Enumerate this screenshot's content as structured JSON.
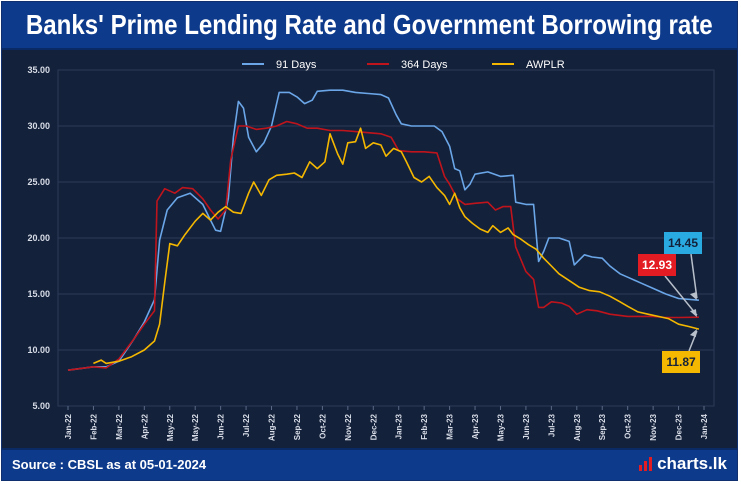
{
  "title": "Banks' Prime Lending Rate and Government Borrowing rate",
  "footer": {
    "source": "Source : CBSL as at 05-01-2024",
    "brand": "charts.lk"
  },
  "colors": {
    "background": "#14213a",
    "header": "#0e3a8c",
    "series_91": "#6aa6e8",
    "series_364": "#c0141c",
    "series_awplr": "#f5b800"
  },
  "chart_data": {
    "type": "line",
    "title": "Banks' Prime Lending Rate and Government Borrowing rate",
    "xlabel": "",
    "ylabel": "",
    "ylim": [
      5,
      35
    ],
    "yticks": [
      "5.00",
      "10.00",
      "15.00",
      "20.00",
      "25.00",
      "30.00",
      "35.00"
    ],
    "xticks": [
      "Jan-22",
      "Feb-22",
      "Mar-22",
      "Apr-22",
      "May-22",
      "May-22",
      "Jun-22",
      "Jul-22",
      "Aug-22",
      "Sep-22",
      "Oct-22",
      "Nov-22",
      "Dec-22",
      "Jan-23",
      "Feb-23",
      "Mar-23",
      "Apr-23",
      "May-23",
      "Jun-23",
      "Jul-23",
      "Aug-23",
      "Sep-23",
      "Oct-23",
      "Nov-23",
      "Dec-23",
      "Jan-24"
    ],
    "grid": true,
    "legend": "top-center",
    "series": [
      {
        "name": "91 Days",
        "color": "#6aa6e8",
        "points": [
          [
            0,
            8.2
          ],
          [
            1.0,
            8.5
          ],
          [
            1.5,
            8.5
          ],
          [
            2.0,
            9.0
          ],
          [
            2.6,
            11.0
          ],
          [
            3.0,
            12.5
          ],
          [
            3.4,
            14.5
          ],
          [
            3.6,
            19.8
          ],
          [
            3.9,
            22.5
          ],
          [
            4.3,
            23.6
          ],
          [
            4.8,
            24.0
          ],
          [
            5.3,
            23.0
          ],
          [
            5.6,
            21.6
          ],
          [
            5.8,
            20.7
          ],
          [
            6.0,
            20.6
          ],
          [
            6.3,
            23.5
          ],
          [
            6.5,
            29.0
          ],
          [
            6.7,
            32.2
          ],
          [
            6.9,
            31.6
          ],
          [
            7.1,
            29.0
          ],
          [
            7.4,
            27.7
          ],
          [
            7.7,
            28.5
          ],
          [
            8.0,
            30.0
          ],
          [
            8.3,
            33.0
          ],
          [
            8.7,
            33.0
          ],
          [
            9.0,
            32.6
          ],
          [
            9.3,
            32.0
          ],
          [
            9.6,
            32.3
          ],
          [
            9.8,
            33.1
          ],
          [
            10.3,
            33.2
          ],
          [
            10.8,
            33.2
          ],
          [
            11.3,
            33.0
          ],
          [
            11.8,
            32.9
          ],
          [
            12.3,
            32.8
          ],
          [
            12.6,
            32.5
          ],
          [
            12.9,
            31.0
          ],
          [
            13.1,
            30.2
          ],
          [
            13.5,
            30.0
          ],
          [
            14.0,
            30.0
          ],
          [
            14.4,
            30.0
          ],
          [
            14.7,
            29.5
          ],
          [
            15.0,
            28.2
          ],
          [
            15.2,
            26.2
          ],
          [
            15.4,
            26.0
          ],
          [
            15.6,
            24.3
          ],
          [
            15.8,
            24.8
          ],
          [
            16.0,
            25.7
          ],
          [
            16.5,
            25.9
          ],
          [
            17.0,
            25.5
          ],
          [
            17.5,
            25.6
          ],
          [
            17.6,
            23.2
          ],
          [
            18.0,
            23.0
          ],
          [
            18.3,
            23.0
          ],
          [
            18.5,
            17.9
          ],
          [
            18.7,
            18.8
          ],
          [
            18.9,
            20.0
          ],
          [
            19.3,
            20.0
          ],
          [
            19.7,
            19.7
          ],
          [
            19.9,
            17.6
          ],
          [
            20.3,
            18.5
          ],
          [
            20.6,
            18.3
          ],
          [
            21.0,
            18.2
          ],
          [
            21.3,
            17.5
          ],
          [
            21.7,
            16.8
          ],
          [
            22.0,
            16.5
          ],
          [
            22.5,
            16.0
          ],
          [
            23.0,
            15.5
          ],
          [
            23.5,
            15.0
          ],
          [
            24.0,
            14.6
          ],
          [
            24.8,
            14.45
          ]
        ]
      },
      {
        "name": "364 Days",
        "color": "#c0141c",
        "points": [
          [
            0,
            8.2
          ],
          [
            1.0,
            8.5
          ],
          [
            1.5,
            8.4
          ],
          [
            2.0,
            9.2
          ],
          [
            2.6,
            11.0
          ],
          [
            3.0,
            12.3
          ],
          [
            3.4,
            13.5
          ],
          [
            3.5,
            23.3
          ],
          [
            3.8,
            24.4
          ],
          [
            4.2,
            24.0
          ],
          [
            4.5,
            24.5
          ],
          [
            4.9,
            24.4
          ],
          [
            5.3,
            23.5
          ],
          [
            5.6,
            22.5
          ],
          [
            5.9,
            21.7
          ],
          [
            6.2,
            22.5
          ],
          [
            6.4,
            27.0
          ],
          [
            6.7,
            30.0
          ],
          [
            7.0,
            30.0
          ],
          [
            7.4,
            29.7
          ],
          [
            7.8,
            29.8
          ],
          [
            8.2,
            30.0
          ],
          [
            8.6,
            30.4
          ],
          [
            9.0,
            30.2
          ],
          [
            9.4,
            29.8
          ],
          [
            9.8,
            29.8
          ],
          [
            10.3,
            29.6
          ],
          [
            10.8,
            29.6
          ],
          [
            11.3,
            29.5
          ],
          [
            11.8,
            29.4
          ],
          [
            12.3,
            29.3
          ],
          [
            12.7,
            29.0
          ],
          [
            13.0,
            27.8
          ],
          [
            13.5,
            27.7
          ],
          [
            14.0,
            27.7
          ],
          [
            14.5,
            27.6
          ],
          [
            14.8,
            25.5
          ],
          [
            15.0,
            24.8
          ],
          [
            15.3,
            23.5
          ],
          [
            15.6,
            23.0
          ],
          [
            16.0,
            23.1
          ],
          [
            16.5,
            23.2
          ],
          [
            16.8,
            22.5
          ],
          [
            17.1,
            22.8
          ],
          [
            17.4,
            22.8
          ],
          [
            17.6,
            19.2
          ],
          [
            18.0,
            17.0
          ],
          [
            18.3,
            16.3
          ],
          [
            18.5,
            13.8
          ],
          [
            18.7,
            13.8
          ],
          [
            19.0,
            14.3
          ],
          [
            19.4,
            14.2
          ],
          [
            19.7,
            13.9
          ],
          [
            20.0,
            13.2
          ],
          [
            20.4,
            13.6
          ],
          [
            20.8,
            13.5
          ],
          [
            21.3,
            13.2
          ],
          [
            22.0,
            13.0
          ],
          [
            22.5,
            13.0
          ],
          [
            23.0,
            13.0
          ],
          [
            23.5,
            12.9
          ],
          [
            24.0,
            12.9
          ],
          [
            24.8,
            12.93
          ]
        ]
      },
      {
        "name": "AWPLR",
        "color": "#f5b800",
        "points": [
          [
            1.0,
            8.8
          ],
          [
            1.3,
            9.1
          ],
          [
            1.5,
            8.8
          ],
          [
            2.0,
            9.0
          ],
          [
            2.5,
            9.4
          ],
          [
            3.0,
            10.0
          ],
          [
            3.4,
            10.8
          ],
          [
            3.6,
            12.3
          ],
          [
            3.8,
            16.0
          ],
          [
            4.0,
            19.5
          ],
          [
            4.3,
            19.3
          ],
          [
            4.6,
            20.3
          ],
          [
            5.0,
            21.5
          ],
          [
            5.3,
            22.2
          ],
          [
            5.6,
            21.6
          ],
          [
            5.9,
            22.3
          ],
          [
            6.2,
            22.8
          ],
          [
            6.5,
            22.3
          ],
          [
            6.8,
            22.2
          ],
          [
            7.1,
            24.0
          ],
          [
            7.3,
            25.0
          ],
          [
            7.6,
            23.8
          ],
          [
            7.9,
            25.2
          ],
          [
            8.2,
            25.6
          ],
          [
            8.6,
            25.7
          ],
          [
            8.9,
            25.8
          ],
          [
            9.2,
            25.4
          ],
          [
            9.5,
            26.8
          ],
          [
            9.8,
            26.2
          ],
          [
            10.1,
            26.8
          ],
          [
            10.3,
            29.3
          ],
          [
            10.6,
            27.5
          ],
          [
            10.8,
            26.6
          ],
          [
            11.0,
            28.5
          ],
          [
            11.3,
            28.6
          ],
          [
            11.5,
            29.8
          ],
          [
            11.7,
            28.0
          ],
          [
            12.0,
            28.5
          ],
          [
            12.3,
            28.3
          ],
          [
            12.5,
            27.3
          ],
          [
            12.8,
            28.0
          ],
          [
            13.1,
            27.7
          ],
          [
            13.3,
            26.8
          ],
          [
            13.6,
            25.4
          ],
          [
            13.9,
            25.0
          ],
          [
            14.2,
            25.5
          ],
          [
            14.5,
            24.5
          ],
          [
            14.8,
            23.8
          ],
          [
            15.0,
            23.0
          ],
          [
            15.2,
            24.0
          ],
          [
            15.4,
            22.7
          ],
          [
            15.6,
            21.9
          ],
          [
            15.9,
            21.3
          ],
          [
            16.2,
            20.8
          ],
          [
            16.5,
            20.5
          ],
          [
            16.7,
            21.1
          ],
          [
            17.0,
            20.5
          ],
          [
            17.3,
            20.9
          ],
          [
            17.5,
            20.3
          ],
          [
            17.8,
            19.9
          ],
          [
            18.1,
            19.4
          ],
          [
            18.4,
            19.0
          ],
          [
            18.7,
            18.2
          ],
          [
            19.0,
            17.5
          ],
          [
            19.3,
            16.8
          ],
          [
            19.7,
            16.2
          ],
          [
            20.1,
            15.6
          ],
          [
            20.5,
            15.3
          ],
          [
            20.9,
            15.2
          ],
          [
            21.3,
            14.8
          ],
          [
            21.7,
            14.3
          ],
          [
            22.0,
            13.9
          ],
          [
            22.4,
            13.4
          ],
          [
            22.8,
            13.2
          ],
          [
            23.2,
            13.0
          ],
          [
            23.6,
            12.8
          ],
          [
            24.0,
            12.3
          ],
          [
            24.4,
            12.1
          ],
          [
            24.8,
            11.87
          ]
        ]
      }
    ],
    "callouts": [
      {
        "label": "14.45",
        "series": "91 Days",
        "bg": "#29abe2"
      },
      {
        "label": "12.93",
        "series": "364 Days",
        "bg": "#e31b23"
      },
      {
        "label": "11.87",
        "series": "AWPLR",
        "bg": "#f5b800"
      }
    ]
  }
}
